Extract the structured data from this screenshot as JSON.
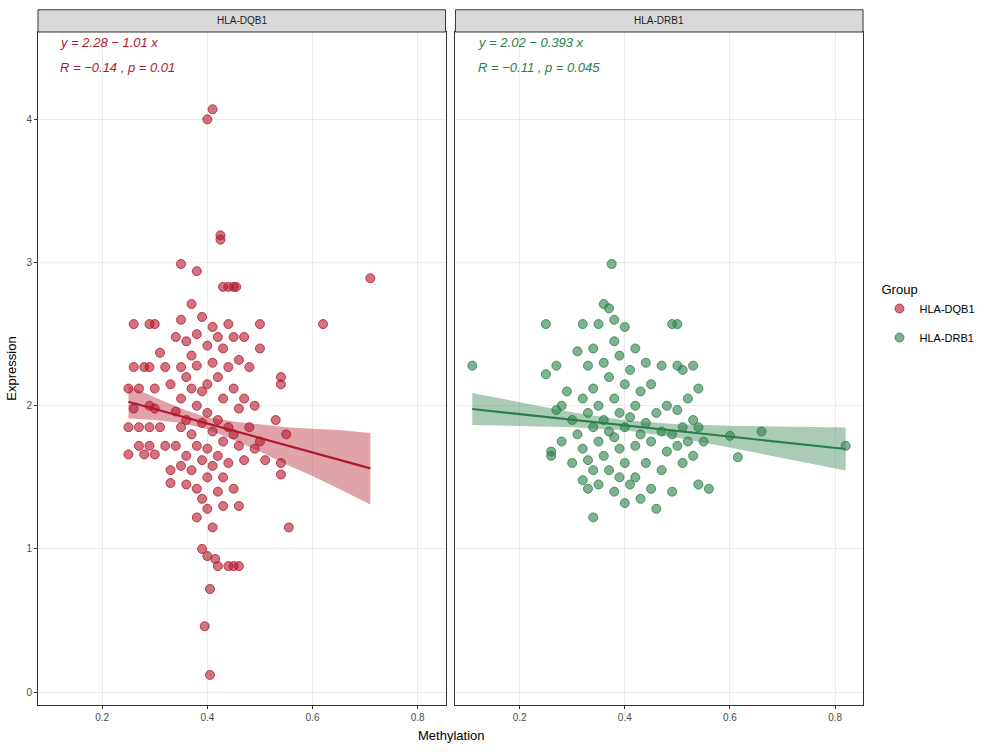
{
  "chart_data": {
    "type": "scatter",
    "x_label": "Methylation",
    "y_label": "Expression",
    "legend_title": "Group",
    "legend": "right",
    "grid": true,
    "xlim": [
      0.078,
      0.853
    ],
    "ylim": [
      -0.09,
      4.61
    ],
    "xticks": [
      0.2,
      0.4,
      0.6,
      0.8
    ],
    "yticks": [
      0,
      1,
      2,
      3,
      4
    ],
    "panels": [
      {
        "title": "HLA-DQB1",
        "annotations": [
          "y = 2.28 − 1.01 x",
          "R = −0.14 , p = 0.01"
        ],
        "series": [
          {
            "name": "HLA-DQB1",
            "color": "#b2182b",
            "x": [
              0.25,
              0.25,
              0.25,
              0.26,
              0.26,
              0.26,
              0.27,
              0.27,
              0.27,
              0.28,
              0.28,
              0.29,
              0.29,
              0.29,
              0.29,
              0.29,
              0.3,
              0.3,
              0.3,
              0.3,
              0.31,
              0.31,
              0.32,
              0.32,
              0.33,
              0.33,
              0.33,
              0.34,
              0.34,
              0.34,
              0.35,
              0.35,
              0.35,
              0.35,
              0.35,
              0.35,
              0.36,
              0.36,
              0.36,
              0.36,
              0.36,
              0.37,
              0.37,
              0.37,
              0.37,
              0.37,
              0.38,
              0.38,
              0.38,
              0.38,
              0.38,
              0.38,
              0.38,
              0.39,
              0.39,
              0.39,
              0.39,
              0.39,
              0.39,
              0.395,
              0.4,
              0.4,
              0.4,
              0.4,
              0.4,
              0.4,
              0.4,
              0.4,
              0.405,
              0.405,
              0.41,
              0.41,
              0.41,
              0.41,
              0.41,
              0.41,
              0.415,
              0.42,
              0.42,
              0.42,
              0.42,
              0.42,
              0.42,
              0.425,
              0.425,
              0.43,
              0.43,
              0.43,
              0.43,
              0.43,
              0.43,
              0.44,
              0.44,
              0.44,
              0.44,
              0.44,
              0.44,
              0.45,
              0.45,
              0.45,
              0.45,
              0.45,
              0.45,
              0.455,
              0.46,
              0.46,
              0.46,
              0.46,
              0.46,
              0.47,
              0.47,
              0.47,
              0.48,
              0.48,
              0.49,
              0.49,
              0.5,
              0.5,
              0.5,
              0.51,
              0.53,
              0.54,
              0.54,
              0.54,
              0.54,
              0.55,
              0.555,
              0.62,
              0.71
            ],
            "y": [
              2.12,
              1.85,
              1.66,
              2.57,
              2.27,
              1.98,
              1.85,
              1.72,
              2.12,
              2.27,
              1.66,
              2.57,
              2.27,
              2.0,
              1.85,
              1.72,
              2.57,
              2.12,
              1.98,
              1.66,
              2.37,
              1.85,
              2.27,
              1.72,
              1.55,
              1.46,
              2.15,
              2.48,
              1.96,
              1.72,
              2.6,
              2.27,
              2.05,
              1.85,
              1.58,
              2.99,
              2.45,
              2.2,
              1.9,
              1.65,
              1.45,
              2.71,
              2.35,
              2.12,
              1.8,
              1.55,
              2.94,
              2.5,
              2.28,
              2.0,
              1.72,
              1.42,
              1.22,
              2.62,
              2.1,
              1.88,
              1.62,
              1.35,
              1.0,
              0.46,
              4.0,
              2.42,
              2.15,
              1.95,
              1.7,
              1.5,
              1.28,
              0.95,
              0.72,
              0.12,
              4.07,
              2.55,
              2.3,
              1.82,
              1.58,
              1.15,
              0.93,
              2.48,
              2.2,
              1.9,
              1.65,
              1.4,
              0.88,
              3.19,
              3.16,
              2.83,
              2.4,
              2.05,
              1.75,
              1.5,
              1.3,
              2.83,
              2.57,
              2.27,
              1.85,
              1.6,
              0.88,
              2.83,
              2.48,
              2.12,
              1.8,
              1.42,
              0.88,
              2.83,
              2.32,
              1.98,
              1.72,
              1.3,
              0.88,
              2.48,
              2.05,
              1.62,
              2.27,
              1.85,
              2.0,
              1.7,
              2.57,
              2.4,
              1.75,
              1.62,
              1.9,
              2.2,
              2.15,
              1.6,
              1.52,
              1.8,
              1.15,
              2.57,
              2.89
            ]
          }
        ],
        "fit": {
          "x": [
            0.25,
            0.71
          ],
          "y": [
            2.0275,
            1.5629
          ]
        },
        "band": {
          "x": [
            0.25,
            0.3,
            0.35,
            0.4,
            0.45,
            0.5,
            0.55,
            0.6,
            0.65,
            0.71
          ],
          "lower": [
            1.91,
            1.9,
            1.88,
            1.835,
            1.76,
            1.68,
            1.59,
            1.51,
            1.42,
            1.31
          ],
          "upper": [
            2.14,
            2.06,
            1.98,
            1.917,
            1.89,
            1.87,
            1.85,
            1.84,
            1.83,
            1.81
          ]
        }
      },
      {
        "title": "HLA-DRB1",
        "annotations": [
          "y = 2.02 − 0.393 x",
          "R = −0.11 , p = 0.045"
        ],
        "series": [
          {
            "name": "HLA-DRB1",
            "color": "#2a7f48",
            "x": [
              0.11,
              0.25,
              0.25,
              0.26,
              0.26,
              0.27,
              0.27,
              0.28,
              0.28,
              0.29,
              0.3,
              0.3,
              0.31,
              0.31,
              0.32,
              0.32,
              0.32,
              0.32,
              0.33,
              0.33,
              0.33,
              0.33,
              0.34,
              0.34,
              0.34,
              0.34,
              0.34,
              0.35,
              0.35,
              0.35,
              0.35,
              0.36,
              0.36,
              0.36,
              0.36,
              0.37,
              0.37,
              0.37,
              0.37,
              0.375,
              0.38,
              0.38,
              0.38,
              0.38,
              0.38,
              0.39,
              0.39,
              0.39,
              0.39,
              0.4,
              0.4,
              0.4,
              0.4,
              0.4,
              0.41,
              0.41,
              0.41,
              0.42,
              0.42,
              0.42,
              0.42,
              0.43,
              0.43,
              0.43,
              0.44,
              0.44,
              0.44,
              0.45,
              0.45,
              0.45,
              0.46,
              0.46,
              0.47,
              0.47,
              0.47,
              0.48,
              0.48,
              0.49,
              0.49,
              0.49,
              0.5,
              0.5,
              0.5,
              0.5,
              0.51,
              0.51,
              0.51,
              0.52,
              0.52,
              0.53,
              0.53,
              0.53,
              0.54,
              0.54,
              0.54,
              0.55,
              0.56,
              0.6,
              0.615,
              0.66,
              0.82
            ],
            "y": [
              2.28,
              2.57,
              2.22,
              1.68,
              1.65,
              2.28,
              1.97,
              2.0,
              1.75,
              2.1,
              1.9,
              1.6,
              2.38,
              1.8,
              2.57,
              2.05,
              1.7,
              1.48,
              2.28,
              1.95,
              1.62,
              1.42,
              2.4,
              2.12,
              1.85,
              1.55,
              1.22,
              2.57,
              2.0,
              1.75,
              1.45,
              2.71,
              2.3,
              1.9,
              1.65,
              2.68,
              2.2,
              1.82,
              1.55,
              2.99,
              2.6,
              2.45,
              2.05,
              1.78,
              1.4,
              2.35,
              1.95,
              1.7,
              1.5,
              2.55,
              2.15,
              1.85,
              1.6,
              1.32,
              2.25,
              1.92,
              1.45,
              2.4,
              2.0,
              1.72,
              1.5,
              2.1,
              1.8,
              1.35,
              2.3,
              1.88,
              1.6,
              2.15,
              1.75,
              1.42,
              1.95,
              1.28,
              2.28,
              1.82,
              1.55,
              2.0,
              1.68,
              2.57,
              1.8,
              1.4,
              2.57,
              2.28,
              1.97,
              1.72,
              2.25,
              1.85,
              1.6,
              2.05,
              1.75,
              2.28,
              1.9,
              1.65,
              2.12,
              1.85,
              1.45,
              1.75,
              1.42,
              1.79,
              1.64,
              1.82,
              1.72
            ]
          }
        ],
        "fit": {
          "x": [
            0.11,
            0.82
          ],
          "y": [
            1.977,
            1.698
          ]
        },
        "band": {
          "x": [
            0.11,
            0.2,
            0.3,
            0.4,
            0.5,
            0.6,
            0.7,
            0.82
          ],
          "lower": [
            1.865,
            1.859,
            1.85,
            1.828,
            1.776,
            1.708,
            1.636,
            1.548
          ],
          "upper": [
            2.089,
            2.023,
            1.954,
            1.898,
            1.87,
            1.86,
            1.854,
            1.848
          ]
        }
      }
    ]
  }
}
